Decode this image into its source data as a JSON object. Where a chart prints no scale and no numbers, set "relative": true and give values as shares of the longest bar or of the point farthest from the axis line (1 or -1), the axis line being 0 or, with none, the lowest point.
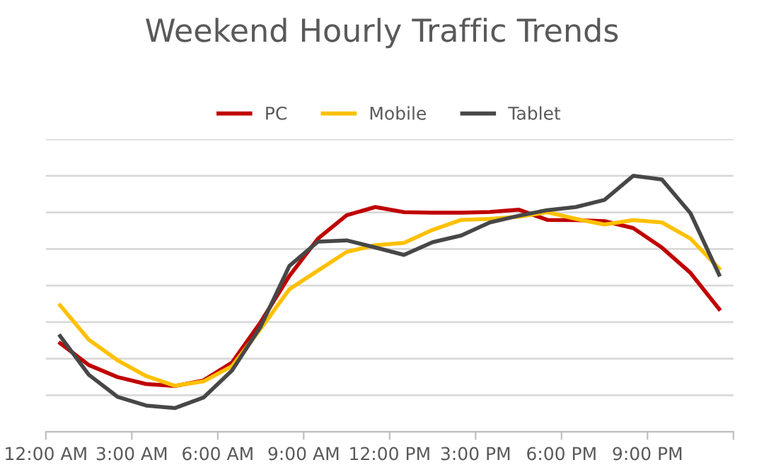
{
  "chart_data": {
    "type": "line",
    "title": "Weekend Hourly Traffic Trends",
    "relative": true,
    "grid": "y",
    "legend": "top",
    "marker": "none",
    "line_style": "solid",
    "x": [
      0.5,
      1.5,
      2.5,
      3.5,
      4.5,
      5.5,
      6.5,
      7.5,
      8.5,
      9.5,
      10.5,
      11.5,
      12.5,
      13.5,
      14.5,
      15.5,
      16.5,
      17.5,
      18.5,
      19.5,
      20.5,
      21.5,
      22.5,
      23.5
    ],
    "xlim": [
      0,
      24
    ],
    "xticks": [
      {
        "value": 0,
        "label": "12:00 AM"
      },
      {
        "value": 3,
        "label": "3:00 AM"
      },
      {
        "value": 6,
        "label": "6:00 AM"
      },
      {
        "value": 9,
        "label": "9:00 AM"
      },
      {
        "value": 12,
        "label": "12:00 PM"
      },
      {
        "value": 15,
        "label": "3:00 PM"
      },
      {
        "value": 18,
        "label": "6:00 PM"
      },
      {
        "value": 21,
        "label": "9:00 PM"
      },
      {
        "value": 24,
        "label": null
      }
    ],
    "series": [
      {
        "name": "PC",
        "color": "#c00000",
        "values": [
          0.346,
          0.261,
          0.214,
          0.187,
          0.179,
          0.201,
          0.271,
          0.429,
          0.609,
          0.755,
          0.846,
          0.878,
          0.858,
          0.856,
          0.856,
          0.859,
          0.868,
          0.828,
          0.827,
          0.823,
          0.796,
          0.72,
          0.621,
          0.48
        ]
      },
      {
        "name": "Mobile",
        "color": "#ffc000",
        "values": [
          0.494,
          0.36,
          0.28,
          0.218,
          0.18,
          0.197,
          0.257,
          0.403,
          0.557,
          0.63,
          0.703,
          0.729,
          0.738,
          0.789,
          0.828,
          0.832,
          0.84,
          0.858,
          0.832,
          0.81,
          0.827,
          0.818,
          0.755,
          0.638
        ]
      },
      {
        "name": "Tablet",
        "color": "#474747",
        "values": [
          0.374,
          0.223,
          0.137,
          0.103,
          0.093,
          0.134,
          0.24,
          0.412,
          0.648,
          0.743,
          0.748,
          0.72,
          0.691,
          0.741,
          0.767,
          0.818,
          0.844,
          0.866,
          0.878,
          0.906,
          1,
          0.986,
          0.854,
          0.614
        ]
      }
    ]
  }
}
